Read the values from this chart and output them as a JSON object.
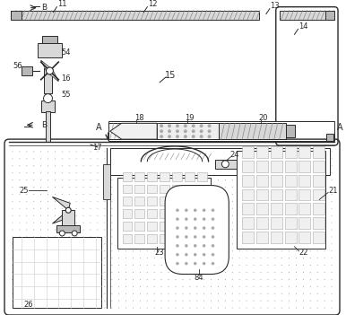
{
  "bg_color": "#ebebeb",
  "line_color": "#2a2a2a",
  "white": "#ffffff",
  "light_gray": "#d8d8d8",
  "medium_gray": "#b8b8b8",
  "dot_gray": "#aaaaaa",
  "hatch_gray": "#888888",
  "labels": {
    "11": "11",
    "12": "12",
    "13": "13",
    "14": "14",
    "15": "15",
    "16": "16",
    "17": "17",
    "18": "18",
    "19": "19",
    "20": "20",
    "21": "21",
    "22": "22",
    "23": "23",
    "24": "24",
    "25": "25",
    "26": "26",
    "54": "54",
    "55": "55",
    "56": "56",
    "84": "84",
    "A": "A"
  },
  "fig_w": 3.86,
  "fig_h": 3.51,
  "dpi": 100
}
